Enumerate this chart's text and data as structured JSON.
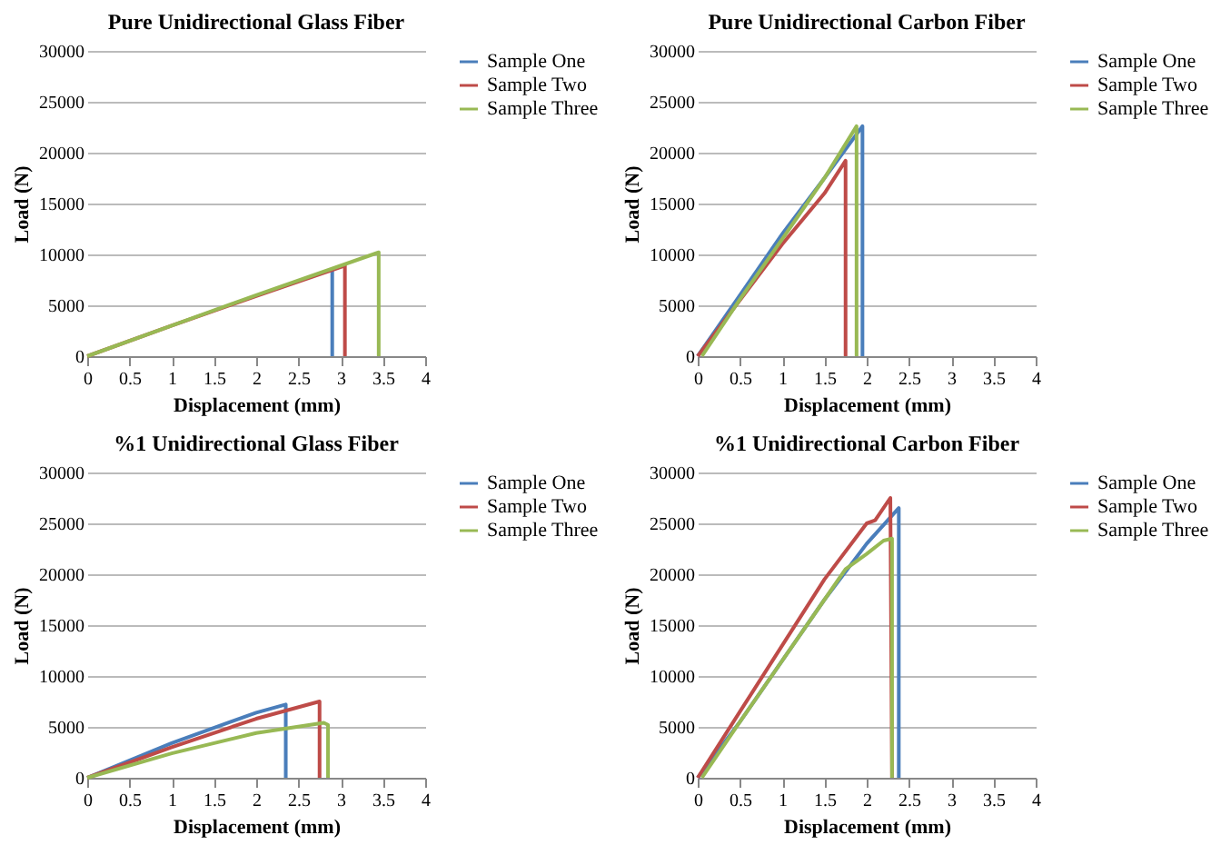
{
  "chart_data": [
    {
      "type": "line",
      "title": "Pure Unidirectional  Glass Fiber",
      "xlabel": "Displacement (mm)",
      "ylabel": "Load (N)",
      "xlim": [
        0,
        4
      ],
      "xticks": [
        0,
        0.5,
        1,
        1.5,
        2,
        2.5,
        3,
        3.5,
        4
      ],
      "ylim": [
        0,
        30000
      ],
      "yticks": [
        0,
        5000,
        10000,
        15000,
        20000,
        25000,
        30000
      ],
      "grid": "y",
      "legend": "right",
      "series": [
        {
          "name": "Sample One",
          "color": "#4a7ebb",
          "x": [
            2.9,
            2.9
          ],
          "values": [
            8600,
            0
          ]
        },
        {
          "name": "Sample Two",
          "color": "#be4b48",
          "x": [
            0,
            1,
            2,
            3.05,
            3.05
          ],
          "values": [
            0,
            3000,
            5900,
            8900,
            0
          ]
        },
        {
          "name": "Sample Three",
          "color": "#98b954",
          "x": [
            0,
            1,
            2,
            3.45,
            3.45
          ],
          "values": [
            0,
            3000,
            6000,
            10200,
            0
          ]
        }
      ]
    },
    {
      "type": "line",
      "title": "Pure Unidirectional  Carbon Fiber",
      "xlabel": "Displacement (mm)",
      "ylabel": "Load (N)",
      "xlim": [
        0,
        4
      ],
      "xticks": [
        0,
        0.5,
        1,
        1.5,
        2,
        2.5,
        3,
        3.5,
        4
      ],
      "ylim": [
        0,
        30000
      ],
      "yticks": [
        0,
        5000,
        10000,
        15000,
        20000,
        25000,
        30000
      ],
      "grid": "y",
      "legend": "right",
      "series": [
        {
          "name": "Sample One",
          "color": "#4a7ebb",
          "x": [
            0,
            0.5,
            1,
            1.5,
            1.95,
            1.95
          ],
          "values": [
            0,
            6000,
            12000,
            17500,
            22600,
            0
          ]
        },
        {
          "name": "Sample Two",
          "color": "#be4b48",
          "x": [
            0,
            0.5,
            1,
            1.5,
            1.75,
            1.75
          ],
          "values": [
            0,
            5500,
            11000,
            16000,
            19200,
            0
          ]
        },
        {
          "name": "Sample Three",
          "color": "#98b954",
          "x": [
            0.05,
            0.5,
            1,
            1.5,
            1.88,
            1.88
          ],
          "values": [
            0,
            5600,
            11500,
            17500,
            22600,
            0
          ]
        }
      ]
    },
    {
      "type": "line",
      "title": "%1 Unidirectional  Glass Fiber",
      "xlabel": "Displacement (mm)",
      "ylabel": "Load (N)",
      "xlim": [
        0,
        4
      ],
      "xticks": [
        0,
        0.5,
        1,
        1.5,
        2,
        2.5,
        3,
        3.5,
        4
      ],
      "ylim": [
        0,
        30000
      ],
      "yticks": [
        0,
        5000,
        10000,
        15000,
        20000,
        25000,
        30000
      ],
      "grid": "y",
      "legend": "right",
      "series": [
        {
          "name": "Sample One",
          "color": "#4a7ebb",
          "x": [
            0,
            1,
            2,
            2.35,
            2.35
          ],
          "values": [
            0,
            3400,
            6400,
            7200,
            0
          ]
        },
        {
          "name": "Sample Two",
          "color": "#be4b48",
          "x": [
            0,
            1,
            2,
            2.75,
            2.75
          ],
          "values": [
            0,
            3000,
            5800,
            7500,
            0
          ]
        },
        {
          "name": "Sample Three",
          "color": "#98b954",
          "x": [
            0,
            1,
            2,
            2.8,
            2.85,
            2.85
          ],
          "values": [
            0,
            2400,
            4400,
            5400,
            5200,
            0
          ]
        }
      ]
    },
    {
      "type": "line",
      "title": "%1 Unidirectional Carbon Fiber",
      "xlabel": "Displacement (mm)",
      "ylabel": "Load (N)",
      "xlim": [
        0,
        4
      ],
      "xticks": [
        0,
        0.5,
        1,
        1.5,
        2,
        2.5,
        3,
        3.5,
        4
      ],
      "ylim": [
        0,
        30000
      ],
      "yticks": [
        0,
        5000,
        10000,
        15000,
        20000,
        25000,
        30000
      ],
      "grid": "y",
      "legend": "right",
      "series": [
        {
          "name": "Sample One",
          "color": "#4a7ebb",
          "x": [
            0,
            0.5,
            1,
            1.5,
            2,
            2.38,
            2.38
          ],
          "values": [
            0,
            5500,
            11500,
            17500,
            23000,
            26500,
            0
          ]
        },
        {
          "name": "Sample Two",
          "color": "#be4b48",
          "x": [
            0,
            0.5,
            1,
            1.5,
            2,
            2.1,
            2.28,
            2.3
          ],
          "values": [
            0,
            6500,
            13000,
            19500,
            25000,
            25300,
            27500,
            0
          ]
        },
        {
          "name": "Sample Three",
          "color": "#98b954",
          "x": [
            0.05,
            0.5,
            1,
            1.5,
            1.75,
            2,
            2.2,
            2.3,
            2.3
          ],
          "values": [
            0,
            5500,
            11500,
            17500,
            20500,
            22000,
            23300,
            23500,
            0
          ]
        }
      ]
    }
  ]
}
